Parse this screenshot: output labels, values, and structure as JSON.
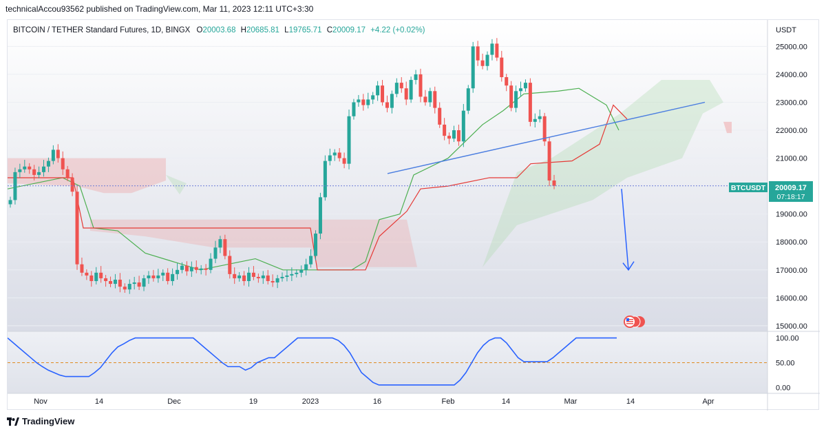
{
  "header": {
    "publisher": "technicalAccou93562 published on TradingView.com, Mar 11, 2023 12:11 UTC+3:30"
  },
  "legend": {
    "symbol": "BITCOIN / TETHER Standard Futures, 1D, BINGX",
    "open_label": "O",
    "open": "20003.68",
    "high_label": "H",
    "high": "20685.81",
    "low_label": "L",
    "low": "19765.71",
    "close_label": "C",
    "close": "20009.17",
    "change": "+4.22 (+0.02%)"
  },
  "price_axis": {
    "currency": "USDT",
    "ticks": [
      "25000.00",
      "24000.00",
      "23000.00",
      "22000.00",
      "21000.00",
      "20000.00",
      "19000.00",
      "18000.00",
      "17000.00",
      "16000.00",
      "15000.00"
    ]
  },
  "price_label": {
    "symbol": "BTCUSDT",
    "price": "20009.17",
    "countdown": "07:18:17"
  },
  "indicator_axis": {
    "ticks": [
      "100.00",
      "50.00",
      "0.00"
    ]
  },
  "time_axis": {
    "ticks": [
      "Nov",
      "14",
      "Dec",
      "19",
      "2023",
      "16",
      "Feb",
      "14",
      "Mar",
      "14",
      "Apr"
    ]
  },
  "footer": {
    "brand": "TradingView"
  },
  "colors": {
    "up": "#26a69a",
    "down": "#ef5350",
    "tenkan": "#4caf50",
    "kijun": "#e53935",
    "cloud_bull": "#a5d6a7",
    "cloud_bear": "#ef9a9a",
    "indicator": "#2962ff",
    "trendline": "#4a7de0",
    "arrow": "#2962ff",
    "midline": "#e08a1e"
  },
  "chart_data": {
    "type": "candlestick",
    "title": "BITCOIN / TETHER Standard Futures, 1D, BINGX",
    "y_range": [
      14800,
      25700
    ],
    "indicator_range": [
      -5,
      105
    ],
    "candles_close": [
      19500,
      20500,
      20600,
      20700,
      20600,
      20400,
      20500,
      20700,
      20900,
      21300,
      21000,
      20600,
      20300,
      19800,
      17200,
      16900,
      16800,
      16600,
      16900,
      16700,
      16600,
      16500,
      16650,
      16400,
      16300,
      16500,
      16550,
      16400,
      16700,
      16800,
      16700,
      16800,
      16900,
      16600,
      16850,
      17000,
      17150,
      16950,
      17100,
      17000,
      17050,
      17000,
      17400,
      17800,
      18100,
      17500,
      16850,
      16700,
      16800,
      16600,
      16900,
      16750,
      16700,
      16800,
      16600,
      16550,
      16700,
      16750,
      16800,
      16850,
      16900,
      17000,
      17200,
      17500,
      18300,
      19600,
      20900,
      21100,
      21200,
      21000,
      20800,
      22500,
      23000,
      23100,
      22900,
      23100,
      23250,
      23600,
      23000,
      22800,
      23300,
      23700,
      23500,
      23100,
      23800,
      24000,
      23200,
      23000,
      23400,
      22800,
      22200,
      21800,
      21700,
      22000,
      21600,
      22700,
      23500,
      25000,
      24500,
      24300,
      24700,
      25100,
      24600,
      23900,
      23600,
      22800,
      23400,
      23500,
      23700,
      22300,
      22400,
      22500,
      21600,
      20200,
      20009
    ],
    "trendline": [
      {
        "x_index": 84,
        "price": 20450
      },
      {
        "x_index": 172,
        "price": 23000
      }
    ],
    "forecast_arrow": {
      "from_price": 19900,
      "to_price": 17000
    },
    "indicator_values": [
      100,
      90,
      80,
      70,
      60,
      50,
      42,
      35,
      30,
      25,
      22,
      22,
      22,
      22,
      22,
      30,
      40,
      55,
      70,
      82,
      88,
      95,
      100,
      100,
      100,
      100,
      100,
      100,
      100,
      100,
      100,
      100,
      100,
      90,
      80,
      70,
      60,
      50,
      42,
      42,
      42,
      35,
      40,
      50,
      55,
      60,
      60,
      70,
      80,
      90,
      100,
      100,
      100,
      100,
      100,
      100,
      100,
      95,
      85,
      70,
      50,
      30,
      20,
      10,
      5,
      5,
      5,
      5,
      5,
      5,
      5,
      5,
      5,
      5,
      5,
      5,
      5,
      5,
      15,
      30,
      50,
      70,
      85,
      95,
      100,
      100,
      90,
      75,
      60,
      52,
      52,
      52,
      52,
      52,
      60,
      70,
      80,
      90,
      100,
      100,
      100,
      100,
      100,
      100,
      100,
      100
    ],
    "midline": 50
  }
}
